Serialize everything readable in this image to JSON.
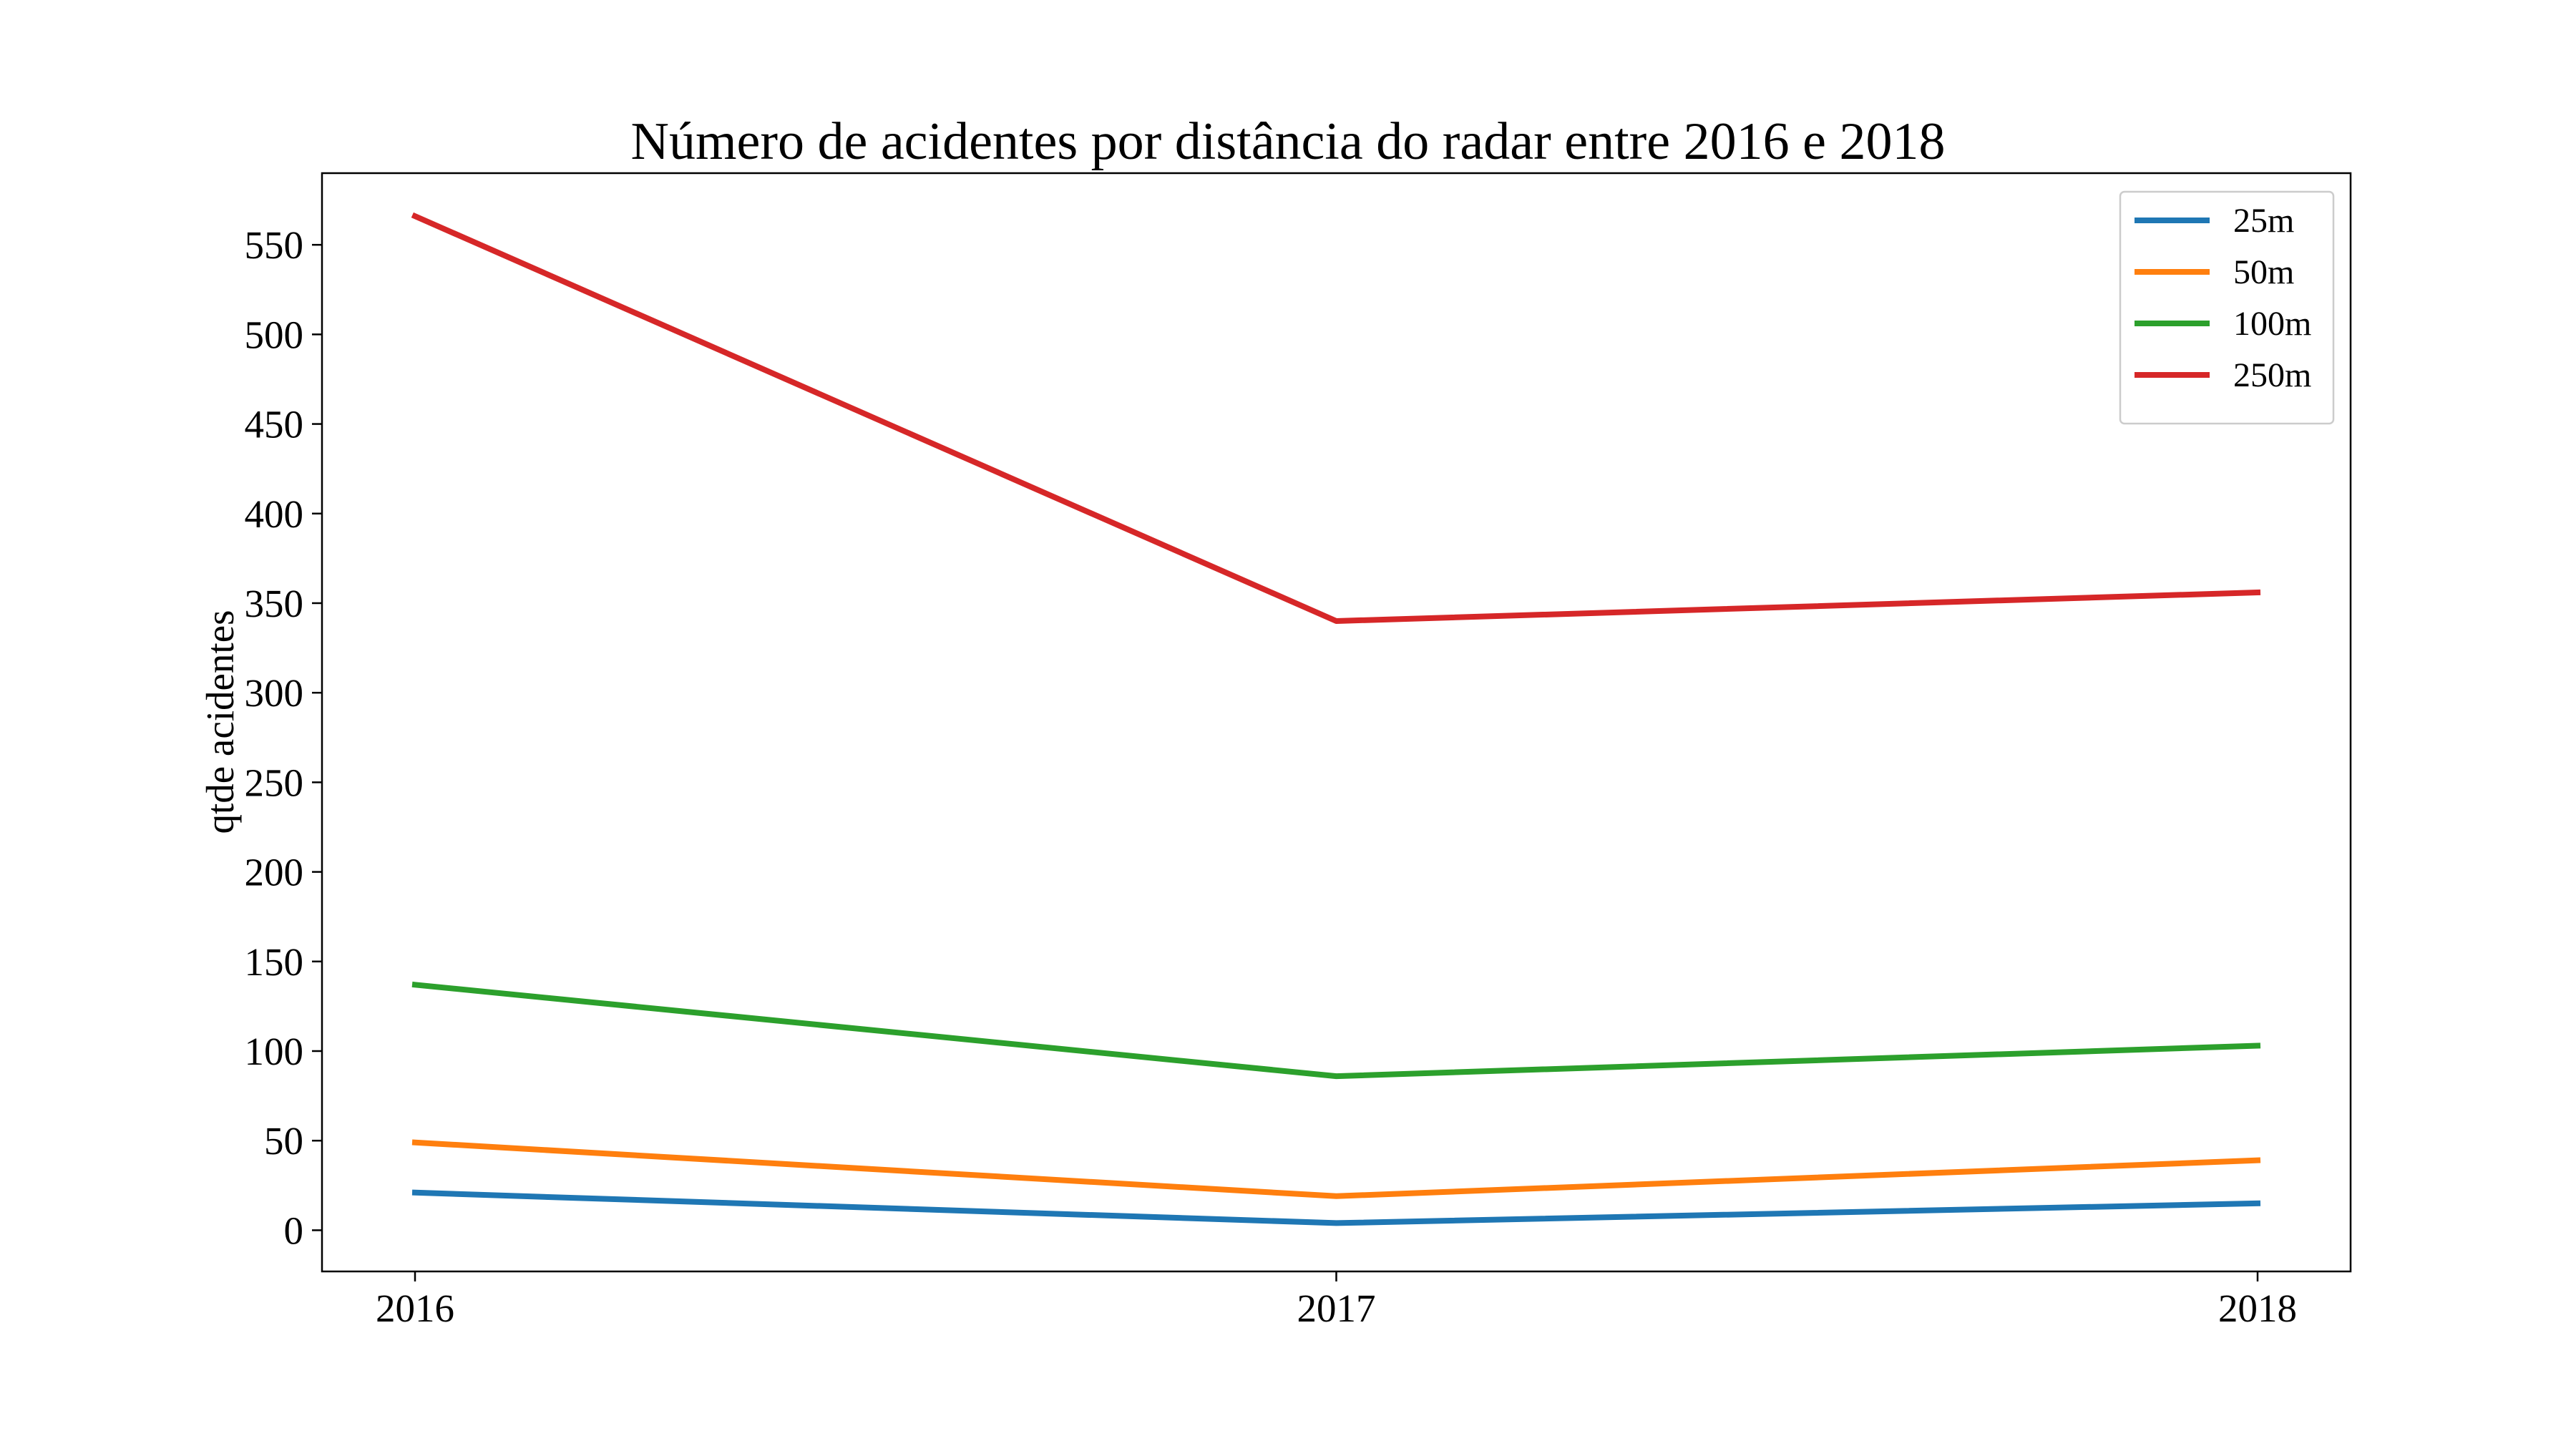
{
  "chart_data": {
    "type": "line",
    "title": "Número de acidentes por distância do radar entre 2016 e 2018",
    "xlabel": "",
    "ylabel": "qtde acidentes",
    "x": [
      "2016",
      "2017",
      "2018"
    ],
    "ylim": [
      -23,
      590
    ],
    "yticks": [
      0,
      50,
      100,
      150,
      200,
      250,
      300,
      350,
      400,
      450,
      500,
      550
    ],
    "grid": false,
    "legend_position": "top-right",
    "series": [
      {
        "name": "25m",
        "color": "#1f77b4",
        "values": [
          21,
          4,
          15
        ]
      },
      {
        "name": "50m",
        "color": "#ff7f0e",
        "values": [
          49,
          19,
          39
        ]
      },
      {
        "name": "100m",
        "color": "#2ca02c",
        "values": [
          137,
          86,
          103
        ]
      },
      {
        "name": "250m",
        "color": "#d62728",
        "values": [
          566,
          340,
          356
        ]
      }
    ]
  }
}
